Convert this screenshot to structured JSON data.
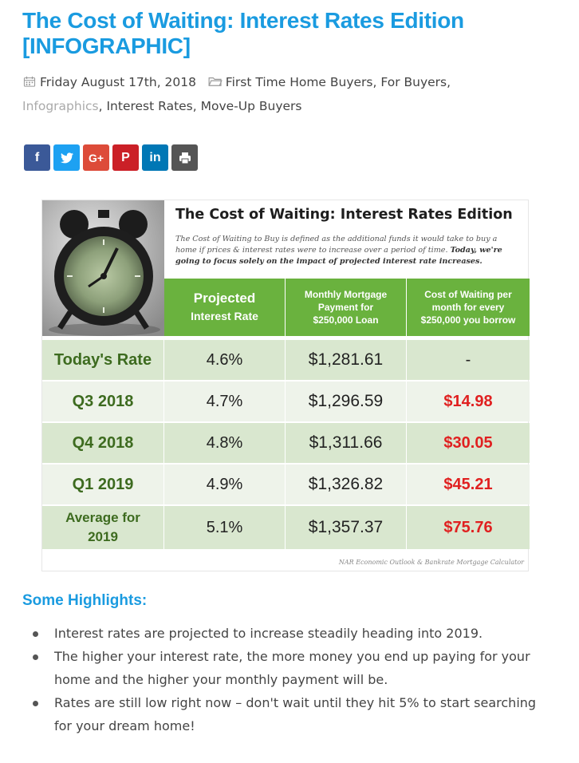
{
  "post": {
    "title": "The Cost of Waiting: Interest Rates Edition [INFOGRAPHIC]",
    "date": "Friday August 17th, 2018",
    "categories_prefix": "First Time Home Buyers, For Buyers,",
    "category_muted": "Infographics",
    "categories_suffix": ", Interest Rates, Move-Up Buyers"
  },
  "share": {
    "facebook": "f",
    "twitter": "t",
    "googleplus": "G+",
    "pinterest": "P",
    "linkedin": "in",
    "print": "print"
  },
  "infographic": {
    "title": "The Cost of Waiting: Interest Rates Edition",
    "desc_normal": "The Cost of Waiting to Buy is defined as the additional funds it would take to buy a home if prices & interest rates were to increase over a period of time.",
    "desc_bold": "Today, we're going to focus solely on the impact of projected interest rate increases.",
    "headers": {
      "rate_line1": "Projected",
      "rate_line2": "Interest Rate",
      "payment": "Monthly Mortgage Payment for $250,000 Loan",
      "cost": "Cost of Waiting per month for every $250,000 you borrow"
    },
    "rows": [
      {
        "label": "Today's Rate",
        "rate": "4.6%",
        "payment": "$1,281.61",
        "cost": "-"
      },
      {
        "label": "Q3 2018",
        "rate": "4.7%",
        "payment": "$1,296.59",
        "cost": "$14.98"
      },
      {
        "label": "Q4 2018",
        "rate": "4.8%",
        "payment": "$1,311.66",
        "cost": "$30.05"
      },
      {
        "label": "Q1 2019",
        "rate": "4.9%",
        "payment": "$1,326.82",
        "cost": "$45.21"
      },
      {
        "label": "Average for 2019",
        "rate": "5.1%",
        "payment": "$1,357.37",
        "cost": "$75.76"
      }
    ],
    "source": "NAR Economic Outlook & Bankrate Mortgage Calculator"
  },
  "highlights": {
    "title": "Some Highlights:",
    "items": [
      "Interest rates are projected to increase steadily heading into 2019.",
      "The higher your interest rate, the more money you end up paying for your home and the higher your monthly payment will be.",
      "Rates are still low right now – don't wait until they hit 5% to start searching for your dream home!"
    ]
  },
  "colors": {
    "title_blue": "#1a9be0",
    "header_green": "#6ab23e",
    "row_dark": "#d9e7cf",
    "row_light": "#eef3ea",
    "cost_red": "#e02020",
    "facebook": "#3b5998",
    "twitter": "#1da1f2",
    "googleplus": "#dd4b39",
    "pinterest": "#cb2027",
    "linkedin": "#0077b5",
    "print": "#555555"
  },
  "icons": {
    "date": "calendar-icon",
    "categories": "folder-icon"
  }
}
